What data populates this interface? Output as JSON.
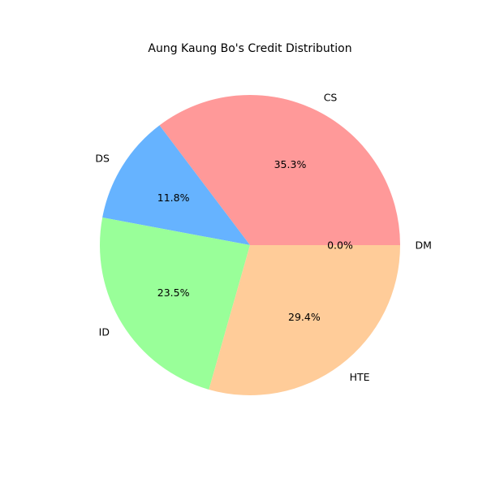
{
  "chart_data": {
    "type": "pie",
    "title": "Aung Kaung Bo's Credit Distribution",
    "categories": [
      "CS",
      "DS",
      "ID",
      "HTE",
      "DM"
    ],
    "values": [
      6,
      2,
      4,
      5,
      0
    ],
    "percent_labels": [
      "35.3%",
      "11.8%",
      "23.5%",
      "29.4%",
      "0.0%"
    ],
    "colors": [
      "#ff9999",
      "#66b3ff",
      "#99ff99",
      "#ffcc99",
      "#c2c2f0"
    ],
    "start_angle_deg": 0,
    "direction": "counterclockwise",
    "legend": "none"
  }
}
